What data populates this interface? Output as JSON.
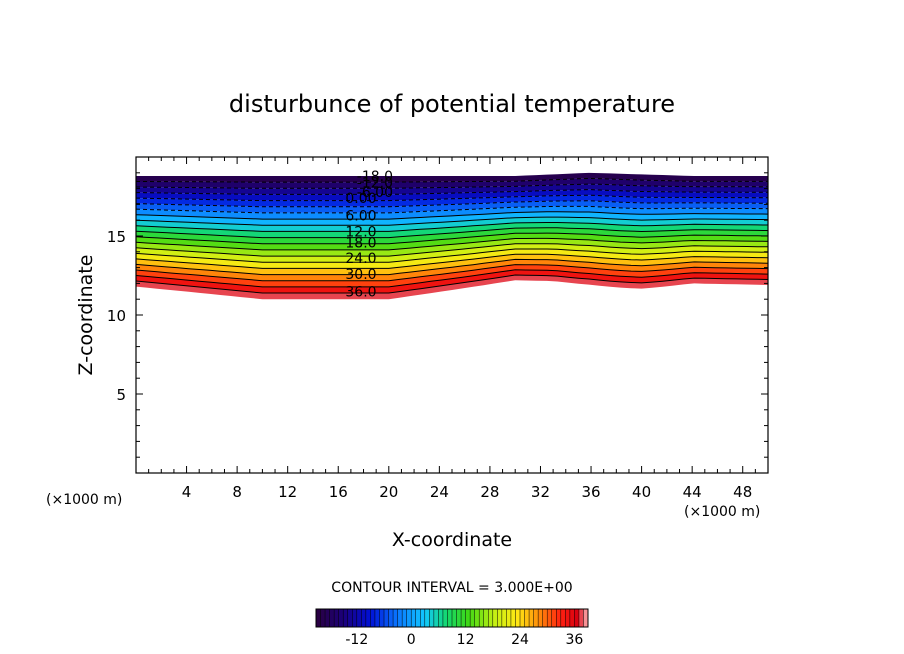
{
  "chart_data": {
    "type": "contour",
    "title": "disturbunce of potential temperature",
    "xlabel": "X-coordinate",
    "ylabel": "Z-coordinate",
    "x_unit": "(×1000 m)",
    "y_unit": "(×1000 m)",
    "xlim": [
      0,
      50
    ],
    "ylim": [
      0,
      20
    ],
    "x_ticks": [
      4,
      8,
      12,
      16,
      20,
      24,
      28,
      32,
      36,
      40,
      44,
      48
    ],
    "y_ticks": [
      5,
      10,
      15
    ],
    "contour_interval_label": "CONTOUR INTERVAL = 3.000E+00",
    "contour_labels": [
      {
        "text": "-18.0",
        "x": 18.9,
        "z": 18.8
      },
      {
        "text": "-12.0",
        "x": 18.9,
        "z": 18.4
      },
      {
        "text": "-6.00",
        "x": 18.9,
        "z": 17.8
      },
      {
        "text": "0.00",
        "x": 17.8,
        "z": 17.4
      },
      {
        "text": "6.00",
        "x": 17.8,
        "z": 16.3
      },
      {
        "text": "12.0",
        "x": 17.8,
        "z": 15.3
      },
      {
        "text": "18.0",
        "x": 17.8,
        "z": 14.6
      },
      {
        "text": "24.0",
        "x": 17.8,
        "z": 13.6
      },
      {
        "text": "30.0",
        "x": 17.8,
        "z": 12.6
      },
      {
        "text": "36.0",
        "x": 17.8,
        "z": 11.5
      }
    ],
    "field_profile": {
      "x": [
        0,
        10,
        20,
        26,
        30,
        36,
        40,
        44,
        50
      ],
      "z_bottom": [
        11.8,
        11.0,
        11.0,
        11.7,
        12.2,
        12.1,
        11.9,
        12.0,
        11.9
      ],
      "z_top": [
        18.8,
        18.8,
        18.8,
        18.8,
        18.8,
        19.0,
        18.9,
        18.8,
        18.8
      ]
    },
    "levels_min": -21,
    "levels_max": 39,
    "colorbar": {
      "range": [
        -21,
        39
      ],
      "ticks": [
        -12,
        0,
        12,
        24,
        36
      ]
    }
  }
}
